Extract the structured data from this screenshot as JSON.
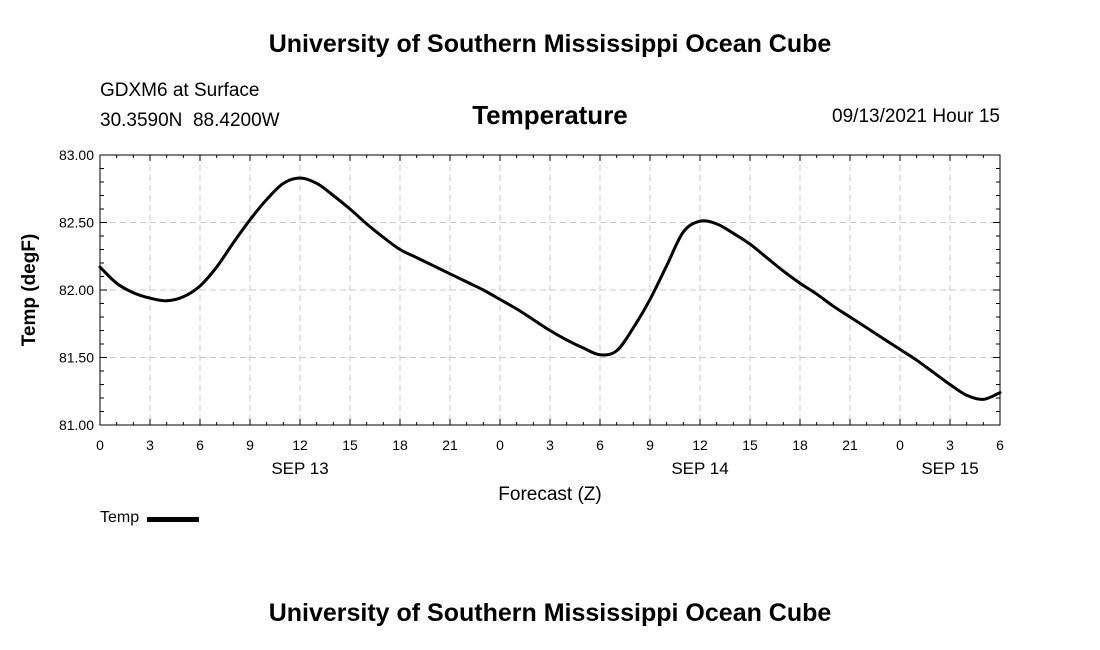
{
  "header": {
    "title": "University of Southern Mississippi Ocean Cube"
  },
  "station": {
    "name": "GDXM6 at Surface",
    "coords": "30.3590N  88.4200W"
  },
  "datestamp": "09/13/2021 Hour 15",
  "legend": {
    "label": "Temp",
    "color": "#000000"
  },
  "footer": {
    "title": "University of Southern Mississippi Ocean Cube"
  },
  "chart_data": {
    "type": "line",
    "title": "Temperature",
    "xlabel": "Forecast (Z)",
    "ylabel": "Temp (degF)",
    "grid": true,
    "legend_position": "bottom-left",
    "xlim": [
      0,
      54
    ],
    "ylim": [
      81.0,
      83.0
    ],
    "x_ticks": [
      0,
      3,
      6,
      9,
      12,
      15,
      18,
      21,
      24,
      27,
      30,
      33,
      36,
      39,
      42,
      45,
      48,
      51,
      54
    ],
    "x_tick_labels": [
      "0",
      "3",
      "6",
      "9",
      "12",
      "15",
      "18",
      "21",
      "0",
      "3",
      "6",
      "9",
      "12",
      "15",
      "18",
      "21",
      "0",
      "3",
      "6"
    ],
    "y_ticks": [
      81.0,
      81.5,
      82.0,
      82.5,
      83.0
    ],
    "y_tick_labels": [
      "81.00",
      "81.50",
      "82.00",
      "82.50",
      "83.00"
    ],
    "date_labels": [
      {
        "x": 12,
        "label": "SEP 13"
      },
      {
        "x": 36,
        "label": "SEP 14"
      },
      {
        "x": 51,
        "label": "SEP 15"
      }
    ],
    "series": [
      {
        "name": "Temp",
        "color": "#000000",
        "x": [
          0,
          1,
          2,
          3,
          4,
          5,
          6,
          7,
          8,
          9,
          10,
          11,
          12,
          13,
          14,
          15,
          16,
          17,
          18,
          19,
          20,
          21,
          22,
          23,
          24,
          25,
          26,
          27,
          28,
          29,
          30,
          31,
          32,
          33,
          34,
          35,
          36,
          37,
          38,
          39,
          40,
          41,
          42,
          43,
          44,
          45,
          46,
          47,
          48,
          49,
          50,
          51,
          52,
          53,
          54
        ],
        "values": [
          82.17,
          82.05,
          81.98,
          81.94,
          81.92,
          81.95,
          82.03,
          82.17,
          82.35,
          82.52,
          82.67,
          82.79,
          82.83,
          82.79,
          82.7,
          82.6,
          82.49,
          82.39,
          82.3,
          82.24,
          82.18,
          82.12,
          82.06,
          82.0,
          81.93,
          81.86,
          81.78,
          81.7,
          81.63,
          81.57,
          81.52,
          81.55,
          81.72,
          81.93,
          82.18,
          82.43,
          82.51,
          82.49,
          82.42,
          82.34,
          82.24,
          82.14,
          82.05,
          81.97,
          81.88,
          81.8,
          81.72,
          81.64,
          81.56,
          81.48,
          81.39,
          81.3,
          81.22,
          81.19,
          81.24
        ]
      }
    ]
  }
}
